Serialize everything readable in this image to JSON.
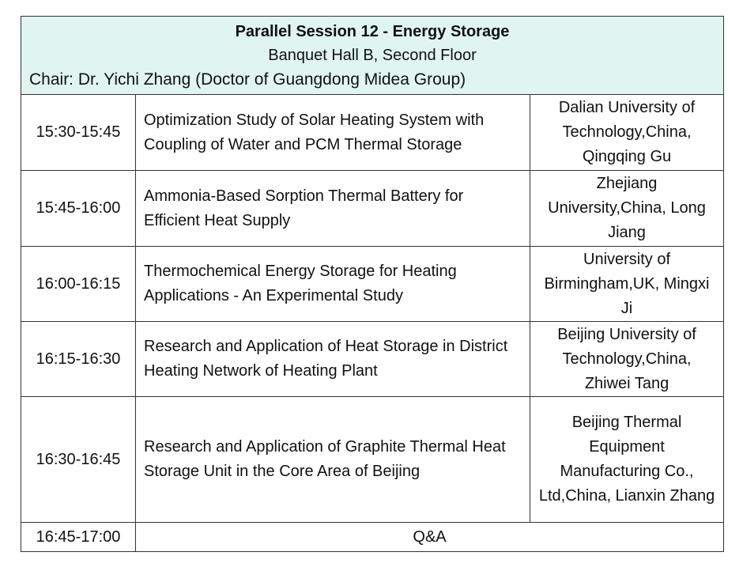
{
  "session": {
    "title": "Parallel Session 12 - Energy Storage",
    "location": "Banquet Hall B, Second Floor",
    "chair": "Chair: Dr. Yichi Zhang (Doctor of Guangdong Midea Group)"
  },
  "talks": [
    {
      "time": "15:30-15:45",
      "title": "Optimization Study of Solar Heating System with Coupling of Water and PCM Thermal Storage",
      "affiliation": "Dalian University of Technology,China, Qingqing Gu"
    },
    {
      "time": "15:45-16:00",
      "title": "Ammonia-Based Sorption Thermal Battery for Efficient Heat Supply",
      "affiliation": "Zhejiang University,China, Long Jiang"
    },
    {
      "time": "16:00-16:15",
      "title": "Thermochemical Energy Storage for Heating Applications - An Experimental Study",
      "affiliation": "University of Birmingham,UK, Mingxi Ji"
    },
    {
      "time": "16:15-16:30",
      "title": "Research and Application of Heat Storage in District Heating Network of Heating Plant",
      "affiliation": "Beijing University of Technology,China, Zhiwei Tang"
    },
    {
      "time": "16:30-16:45",
      "title": "Research and Application of Graphite Thermal Heat Storage Unit in the Core Area of Beijing",
      "affiliation": "Beijing Thermal Equipment Manufacturing Co., Ltd,China, Lianxin Zhang"
    }
  ],
  "qa": {
    "time": "16:45-17:00",
    "label": "Q&A"
  }
}
